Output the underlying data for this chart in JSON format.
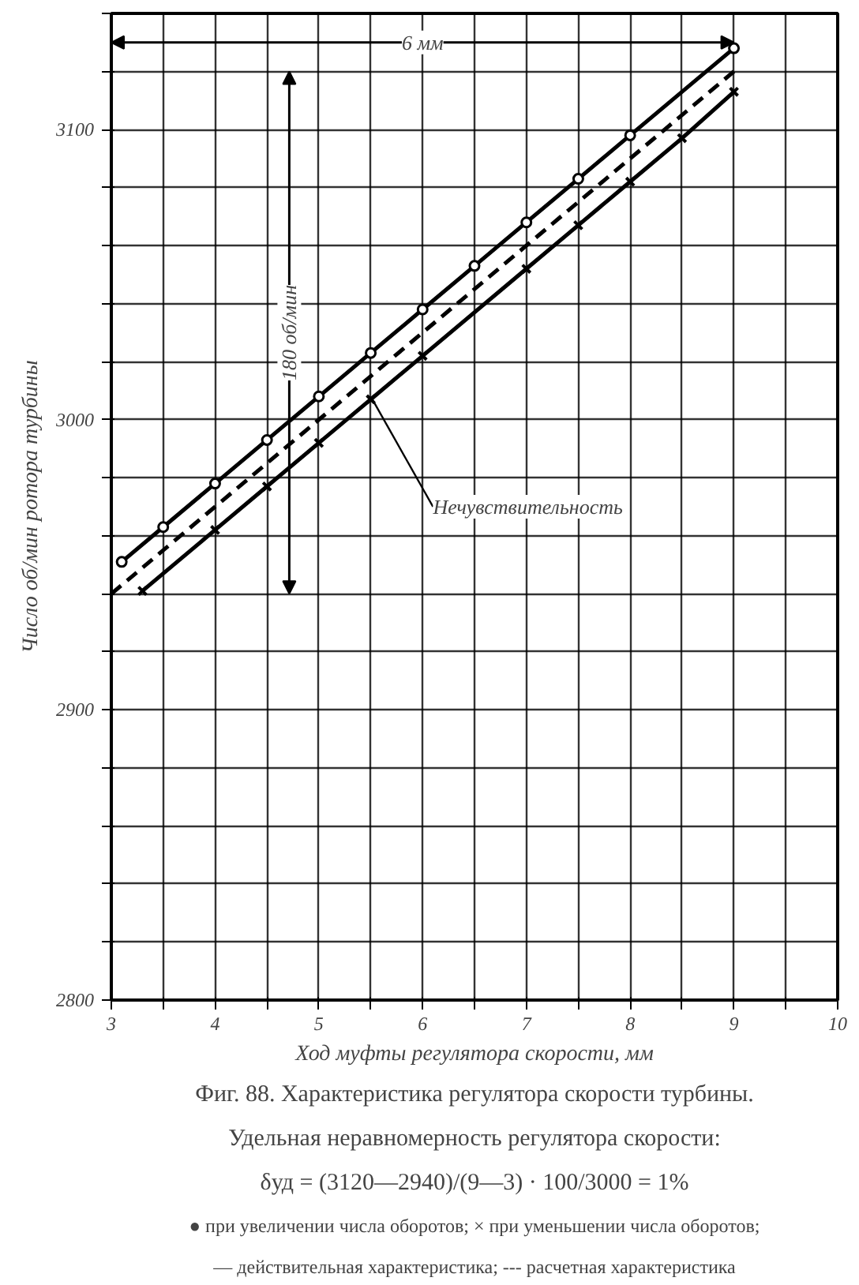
{
  "chart_data": {
    "type": "line",
    "title": "Фиг. 88. Характеристика регулятора скорости турбины. Удельная неравномерность регулятора скорости:",
    "xlabel": "Ход муфты регулятора скорости, мм",
    "ylabel": "Число об/мин ротора турбины",
    "series": [
      {
        "color": "#000000",
        "marker": "circle",
        "line_style": "solid",
        "x": [
          3.1,
          3.5,
          4,
          4.5,
          5,
          5.5,
          6,
          6.5,
          7,
          7.5,
          8,
          9
        ],
        "values": [
          2951,
          2963,
          2978,
          2993,
          3008,
          3023,
          3038,
          3053,
          3068,
          3083,
          3098,
          3128
        ]
      },
      {
        "color": "#000000",
        "marker": "cross",
        "line_style": "solid",
        "x": [
          3.3,
          4,
          4.5,
          5,
          5.5,
          6,
          7,
          7.5,
          8,
          8.5,
          9
        ],
        "values": [
          2941,
          2962,
          2977,
          2992,
          3007,
          3022,
          3052,
          3067,
          3082,
          3097,
          3113
        ]
      },
      {
        "color": "#000000",
        "marker": "none",
        "line_style": "dashed",
        "x": [
          3,
          9
        ],
        "values": [
          2940,
          3120
        ]
      }
    ],
    "xlim": [
      3,
      10
    ],
    "ylim": [
      2800,
      3140
    ],
    "xticks": [
      3,
      {
        "value": 3.5,
        "label": null
      },
      4,
      {
        "value": 4.5,
        "label": null
      },
      5,
      {
        "value": 5.5,
        "label": null
      },
      6,
      {
        "value": 6.5,
        "label": null
      },
      7,
      {
        "value": 7.5,
        "label": null
      },
      8,
      {
        "value": 8.5,
        "label": null
      },
      9,
      {
        "value": 9.5,
        "label": null
      },
      10
    ],
    "yticks": [
      2800,
      {
        "value": 2820,
        "label": null
      },
      {
        "value": 2840,
        "label": null
      },
      {
        "value": 2860,
        "label": null
      },
      {
        "value": 2880,
        "label": null
      },
      2900,
      {
        "value": 2920,
        "label": null
      },
      {
        "value": 2940,
        "label": null
      },
      {
        "value": 2960,
        "label": null
      },
      {
        "value": 2980,
        "label": null
      },
      3000,
      {
        "value": 3020,
        "label": null
      },
      {
        "value": 3040,
        "label": null
      },
      {
        "value": 3060,
        "label": null
      },
      {
        "value": 3080,
        "label": null
      },
      3100,
      {
        "value": 3120,
        "label": null
      },
      {
        "value": 3140,
        "label": null
      }
    ],
    "grid": true,
    "annotations": [
      {
        "text": "6 мм",
        "x": 6,
        "y": 3130
      },
      "180 об/мин",
      {
        "text": "Нечувствительность",
        "x": 5.5,
        "y": 3008
      },
      "δуд = (3120—2940)/(9—3) · 100/3000 = 1%",
      "● при увеличении числа оборотов; × при уменьшении числа оборотов; — действительная характеристика; --- расчетная характеристика"
    ]
  }
}
